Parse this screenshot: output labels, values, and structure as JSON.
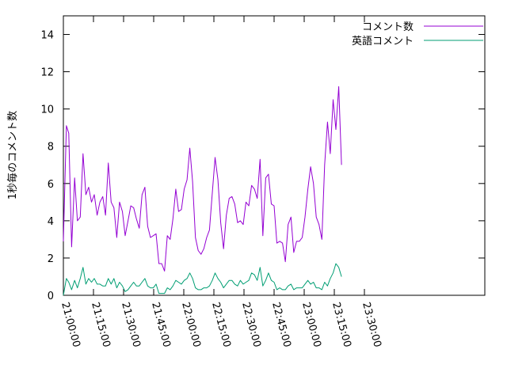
{
  "chart_data": {
    "type": "line",
    "title": "",
    "xlabel": "",
    "ylabel": "1秒毎のコメント数",
    "ylim": [
      0,
      15
    ],
    "xlim_minutes": [
      0,
      210
    ],
    "y_ticks": [
      0,
      2,
      4,
      6,
      8,
      10,
      12,
      14
    ],
    "x_ticks": [
      {
        "minute": 0,
        "label": "21:00:00"
      },
      {
        "minute": 15,
        "label": "21:15:00"
      },
      {
        "minute": 30,
        "label": "21:30:00"
      },
      {
        "minute": 45,
        "label": "21:45:00"
      },
      {
        "minute": 60,
        "label": "22:00:00"
      },
      {
        "minute": 75,
        "label": "22:15:00"
      },
      {
        "minute": 90,
        "label": "22:30:00"
      },
      {
        "minute": 105,
        "label": "22:45:00"
      },
      {
        "minute": 120,
        "label": "23:00:00"
      },
      {
        "minute": 135,
        "label": "23:15:00"
      },
      {
        "minute": 150,
        "label": "23:30:00"
      }
    ],
    "grid": false,
    "legend_position": "top-right",
    "series": [
      {
        "name": "コメント数",
        "color": "#9400d3",
        "points": [
          [
            0,
            2.9
          ],
          [
            1.5,
            9.1
          ],
          [
            2.7,
            8.7
          ],
          [
            4.1,
            2.6
          ],
          [
            5.6,
            6.3
          ],
          [
            7.0,
            4.0
          ],
          [
            8.4,
            4.2
          ],
          [
            9.8,
            7.6
          ],
          [
            11.2,
            5.4
          ],
          [
            12.6,
            5.8
          ],
          [
            14.0,
            5.0
          ],
          [
            15.4,
            5.4
          ],
          [
            16.8,
            4.3
          ],
          [
            18.2,
            5.0
          ],
          [
            19.6,
            5.3
          ],
          [
            21.0,
            4.3
          ],
          [
            22.4,
            7.1
          ],
          [
            23.8,
            5.0
          ],
          [
            25.2,
            4.7
          ],
          [
            26.6,
            3.1
          ],
          [
            28.0,
            5.0
          ],
          [
            29.4,
            4.5
          ],
          [
            30.8,
            3.2
          ],
          [
            32.2,
            4.0
          ],
          [
            33.6,
            4.8
          ],
          [
            35.0,
            4.7
          ],
          [
            36.4,
            4.1
          ],
          [
            37.8,
            3.6
          ],
          [
            39.2,
            5.4
          ],
          [
            40.6,
            5.8
          ],
          [
            42.0,
            3.7
          ],
          [
            43.4,
            3.1
          ],
          [
            44.8,
            3.2
          ],
          [
            46.2,
            3.3
          ],
          [
            47.6,
            1.7
          ],
          [
            49.0,
            1.7
          ],
          [
            50.4,
            1.3
          ],
          [
            51.8,
            3.2
          ],
          [
            53.2,
            3.0
          ],
          [
            54.6,
            4.1
          ],
          [
            56.0,
            5.7
          ],
          [
            57.4,
            4.5
          ],
          [
            58.8,
            4.6
          ],
          [
            60.2,
            5.7
          ],
          [
            61.6,
            6.2
          ],
          [
            63.0,
            7.9
          ],
          [
            64.4,
            6.1
          ],
          [
            65.8,
            3.1
          ],
          [
            67.2,
            2.4
          ],
          [
            68.6,
            2.2
          ],
          [
            70.0,
            2.5
          ],
          [
            71.4,
            3.1
          ],
          [
            72.8,
            3.5
          ],
          [
            74.2,
            5.5
          ],
          [
            75.6,
            7.4
          ],
          [
            77.0,
            6.2
          ],
          [
            78.4,
            3.9
          ],
          [
            79.8,
            2.5
          ],
          [
            81.2,
            4.3
          ],
          [
            82.6,
            5.2
          ],
          [
            84.0,
            5.3
          ],
          [
            85.4,
            4.9
          ],
          [
            86.8,
            3.9
          ],
          [
            88.2,
            4.0
          ],
          [
            89.6,
            3.8
          ],
          [
            91.0,
            5.0
          ],
          [
            92.4,
            4.8
          ],
          [
            93.8,
            5.9
          ],
          [
            95.2,
            5.7
          ],
          [
            96.6,
            5.2
          ],
          [
            98.0,
            7.3
          ],
          [
            99.4,
            3.2
          ],
          [
            100.8,
            6.3
          ],
          [
            102.2,
            6.5
          ],
          [
            103.6,
            4.9
          ],
          [
            105.0,
            4.8
          ],
          [
            106.4,
            2.8
          ],
          [
            107.8,
            2.9
          ],
          [
            109.2,
            2.8
          ],
          [
            110.6,
            1.8
          ],
          [
            112.0,
            3.8
          ],
          [
            113.4,
            4.2
          ],
          [
            114.8,
            2.3
          ],
          [
            116.2,
            2.9
          ],
          [
            117.6,
            2.9
          ],
          [
            119.0,
            3.1
          ],
          [
            120.4,
            4.2
          ],
          [
            121.8,
            5.7
          ],
          [
            123.2,
            6.9
          ],
          [
            124.6,
            6.0
          ],
          [
            126.0,
            4.2
          ],
          [
            127.4,
            3.8
          ],
          [
            128.8,
            3.0
          ],
          [
            130.2,
            7.0
          ],
          [
            131.6,
            9.3
          ],
          [
            133.0,
            7.6
          ],
          [
            134.4,
            10.5
          ],
          [
            135.8,
            8.9
          ],
          [
            137.2,
            11.2
          ],
          [
            138.6,
            7.0
          ]
        ]
      },
      {
        "name": "英語コメント",
        "color": "#009e73",
        "points": [
          [
            0,
            0.0
          ],
          [
            1.5,
            0.9
          ],
          [
            2.7,
            0.7
          ],
          [
            4.1,
            0.3
          ],
          [
            5.6,
            0.8
          ],
          [
            7.0,
            0.4
          ],
          [
            8.4,
            0.9
          ],
          [
            9.8,
            1.5
          ],
          [
            11.2,
            0.6
          ],
          [
            12.6,
            0.9
          ],
          [
            14.0,
            0.7
          ],
          [
            15.4,
            0.9
          ],
          [
            16.8,
            0.6
          ],
          [
            18.2,
            0.6
          ],
          [
            19.6,
            0.5
          ],
          [
            21.0,
            0.5
          ],
          [
            22.4,
            0.9
          ],
          [
            23.8,
            0.6
          ],
          [
            25.2,
            0.9
          ],
          [
            26.6,
            0.4
          ],
          [
            28.0,
            0.7
          ],
          [
            29.4,
            0.5
          ],
          [
            30.8,
            0.2
          ],
          [
            32.2,
            0.3
          ],
          [
            33.6,
            0.5
          ],
          [
            35.0,
            0.7
          ],
          [
            36.4,
            0.5
          ],
          [
            37.8,
            0.5
          ],
          [
            39.2,
            0.7
          ],
          [
            40.6,
            0.9
          ],
          [
            42.0,
            0.5
          ],
          [
            43.4,
            0.4
          ],
          [
            44.8,
            0.4
          ],
          [
            46.2,
            0.6
          ],
          [
            47.6,
            0.1
          ],
          [
            49.0,
            0.1
          ],
          [
            50.4,
            0.1
          ],
          [
            51.8,
            0.4
          ],
          [
            53.2,
            0.3
          ],
          [
            54.6,
            0.5
          ],
          [
            56.0,
            0.8
          ],
          [
            57.4,
            0.7
          ],
          [
            58.8,
            0.6
          ],
          [
            60.2,
            0.8
          ],
          [
            61.6,
            0.9
          ],
          [
            63.0,
            1.2
          ],
          [
            64.4,
            0.9
          ],
          [
            65.8,
            0.4
          ],
          [
            67.2,
            0.3
          ],
          [
            68.6,
            0.3
          ],
          [
            70.0,
            0.4
          ],
          [
            71.4,
            0.4
          ],
          [
            72.8,
            0.5
          ],
          [
            74.2,
            0.8
          ],
          [
            75.6,
            1.2
          ],
          [
            77.0,
            0.9
          ],
          [
            78.4,
            0.7
          ],
          [
            79.8,
            0.4
          ],
          [
            81.2,
            0.6
          ],
          [
            82.6,
            0.8
          ],
          [
            84.0,
            0.8
          ],
          [
            85.4,
            0.6
          ],
          [
            86.8,
            0.5
          ],
          [
            88.2,
            0.8
          ],
          [
            89.6,
            0.6
          ],
          [
            91.0,
            0.7
          ],
          [
            92.4,
            0.8
          ],
          [
            93.8,
            1.2
          ],
          [
            95.2,
            1.1
          ],
          [
            96.6,
            0.8
          ],
          [
            98.0,
            1.5
          ],
          [
            99.4,
            0.5
          ],
          [
            100.8,
            0.8
          ],
          [
            102.2,
            1.2
          ],
          [
            103.6,
            0.8
          ],
          [
            105.0,
            0.7
          ],
          [
            106.4,
            0.3
          ],
          [
            107.8,
            0.4
          ],
          [
            109.2,
            0.3
          ],
          [
            110.6,
            0.3
          ],
          [
            112.0,
            0.5
          ],
          [
            113.4,
            0.6
          ],
          [
            114.8,
            0.3
          ],
          [
            116.2,
            0.4
          ],
          [
            117.6,
            0.4
          ],
          [
            119.0,
            0.4
          ],
          [
            120.4,
            0.6
          ],
          [
            121.8,
            0.8
          ],
          [
            123.2,
            0.6
          ],
          [
            124.6,
            0.7
          ],
          [
            126.0,
            0.4
          ],
          [
            127.4,
            0.4
          ],
          [
            128.8,
            0.3
          ],
          [
            130.2,
            0.7
          ],
          [
            131.6,
            0.5
          ],
          [
            133.0,
            0.9
          ],
          [
            134.4,
            1.2
          ],
          [
            135.8,
            1.7
          ],
          [
            137.2,
            1.5
          ],
          [
            138.6,
            1.0
          ]
        ]
      }
    ]
  }
}
